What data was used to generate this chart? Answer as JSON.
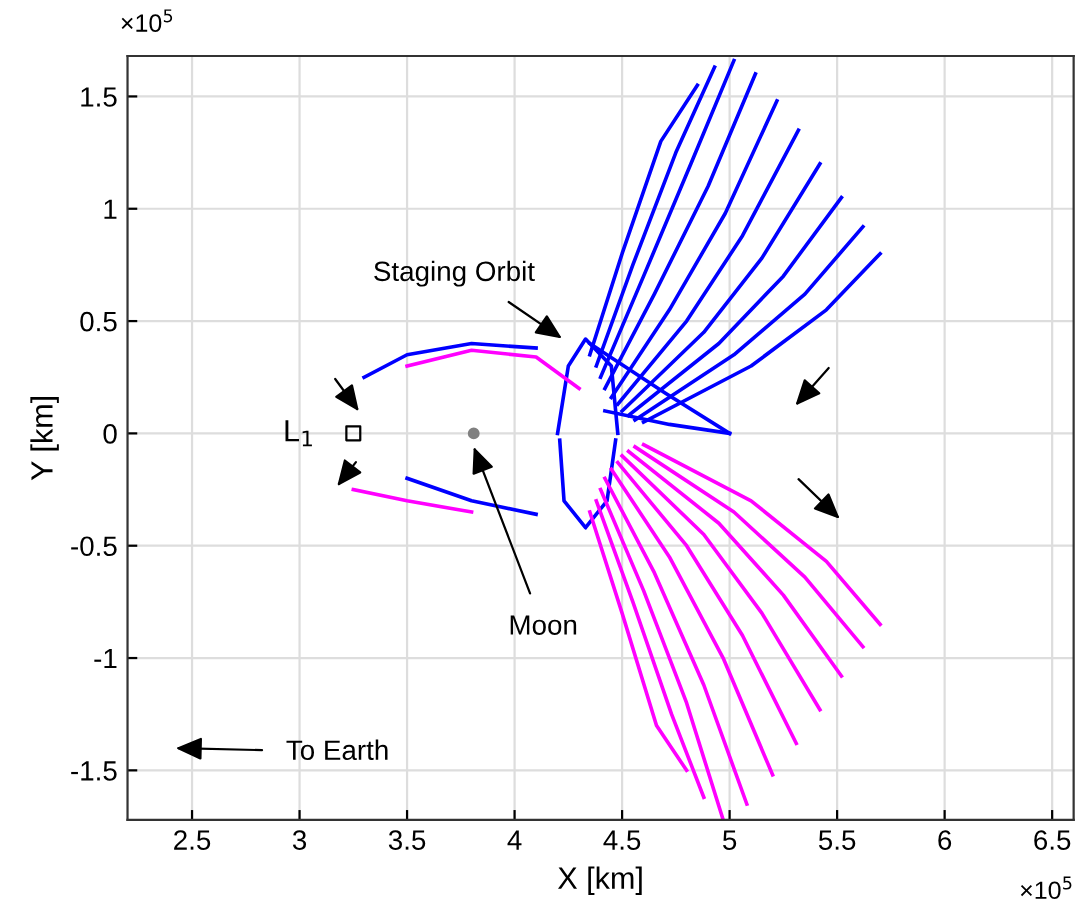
{
  "chart_data": {
    "type": "line",
    "xlabel": "X [km]",
    "ylabel": "Y [km]",
    "xlim": [
      2.2,
      6.6
    ],
    "ylim": [
      -1.72,
      1.68
    ],
    "xticks": [
      2.5,
      3,
      3.5,
      4,
      4.5,
      5,
      5.5,
      6,
      6.5
    ],
    "yticks": [
      -1.5,
      -1,
      -0.5,
      0,
      0.5,
      1,
      1.5
    ],
    "grid": true,
    "marker": "none",
    "line_style": "solid",
    "annotations": [
      "Staging Orbit",
      {
        "text": "Moon",
        "x": 3.81,
        "y": -0.06
      },
      {
        "text": "L$_{1}$",
        "x": 3.2,
        "y": 0
      },
      "To Earth",
      "×10$^{5}$",
      "×10$^{5}$"
    ],
    "series": [
      {
        "color": "#0000ff",
        "x": [
          4.35,
          4.5,
          4.68,
          4.85
        ],
        "values": [
          0.35,
          0.8,
          1.3,
          1.55
        ]
      },
      {
        "color": "#0000ff",
        "x": [
          4.38,
          4.55,
          4.75,
          4.93
        ],
        "values": [
          0.3,
          0.75,
          1.25,
          1.63
        ]
      },
      {
        "color": "#0000ff",
        "x": [
          4.4,
          4.6,
          4.82,
          5.02
        ],
        "values": [
          0.25,
          0.7,
          1.2,
          1.66
        ]
      },
      {
        "color": "#0000ff",
        "x": [
          4.42,
          4.65,
          4.9,
          5.12
        ],
        "values": [
          0.2,
          0.62,
          1.1,
          1.6
        ]
      },
      {
        "color": "#0000ff",
        "x": [
          4.45,
          4.72,
          4.98,
          5.22
        ],
        "values": [
          0.16,
          0.55,
          0.98,
          1.48
        ]
      },
      {
        "color": "#0000ff",
        "x": [
          4.48,
          4.8,
          5.06,
          5.32
        ],
        "values": [
          0.13,
          0.5,
          0.88,
          1.35
        ]
      },
      {
        "color": "#0000ff",
        "x": [
          4.5,
          4.88,
          5.15,
          5.42
        ],
        "values": [
          0.1,
          0.45,
          0.78,
          1.2
        ]
      },
      {
        "color": "#0000ff",
        "x": [
          4.53,
          4.95,
          5.25,
          5.52
        ],
        "values": [
          0.08,
          0.4,
          0.7,
          1.05
        ]
      },
      {
        "color": "#0000ff",
        "x": [
          4.56,
          5.02,
          5.35,
          5.62
        ],
        "values": [
          0.06,
          0.35,
          0.62,
          0.92
        ]
      },
      {
        "color": "#0000ff",
        "x": [
          4.6,
          5.1,
          5.45,
          5.7
        ],
        "values": [
          0.05,
          0.3,
          0.55,
          0.8
        ]
      },
      {
        "color": "#0000ff",
        "x": [
          4.35,
          4.7,
          5.0
        ],
        "values": [
          0.4,
          0.18,
          0
        ]
      },
      {
        "color": "#0000ff",
        "x": [
          4.42,
          4.72,
          5.0
        ],
        "values": [
          0.1,
          0.04,
          0
        ]
      },
      {
        "color": "#0000ff",
        "x": [
          4.2,
          4.25,
          4.33,
          4.45,
          4.48
        ],
        "values": [
          0,
          0.3,
          0.42,
          0.3,
          0
        ]
      },
      {
        "color": "#0000ff",
        "x": [
          4.21,
          4.23,
          4.33,
          4.43,
          4.47
        ],
        "values": [
          -0.03,
          -0.3,
          -0.42,
          -0.3,
          -0.03
        ]
      },
      {
        "color": "#0000ff",
        "x": [
          3.3,
          3.5,
          3.8,
          4.1
        ],
        "values": [
          0.25,
          0.35,
          0.4,
          0.38
        ]
      },
      {
        "color": "#0000ff",
        "x": [
          3.5,
          3.8,
          4.1
        ],
        "values": [
          -0.2,
          -0.3,
          -0.36
        ]
      },
      {
        "color": "#ff00ff",
        "x": [
          3.5,
          3.8,
          4.1,
          4.3
        ],
        "values": [
          0.3,
          0.37,
          0.34,
          0.2
        ]
      },
      {
        "color": "#ff00ff",
        "x": [
          3.25,
          3.5,
          3.8
        ],
        "values": [
          -0.25,
          -0.3,
          -0.35
        ]
      },
      {
        "color": "#ff00ff",
        "x": [
          4.35,
          4.5,
          4.66,
          4.8
        ],
        "values": [
          -0.35,
          -0.8,
          -1.3,
          -1.5
        ]
      },
      {
        "color": "#ff00ff",
        "x": [
          4.38,
          4.55,
          4.73,
          4.88
        ],
        "values": [
          -0.3,
          -0.75,
          -1.25,
          -1.62
        ]
      },
      {
        "color": "#ff00ff",
        "x": [
          4.4,
          4.6,
          4.8,
          4.97
        ],
        "values": [
          -0.25,
          -0.7,
          -1.2,
          -1.72
        ]
      },
      {
        "color": "#ff00ff",
        "x": [
          4.42,
          4.65,
          4.88,
          5.08
        ],
        "values": [
          -0.2,
          -0.62,
          -1.12,
          -1.65
        ]
      },
      {
        "color": "#ff00ff",
        "x": [
          4.45,
          4.72,
          4.97,
          5.2
        ],
        "values": [
          -0.16,
          -0.55,
          -1.0,
          -1.52
        ]
      },
      {
        "color": "#ff00ff",
        "x": [
          4.48,
          4.8,
          5.06,
          5.31
        ],
        "values": [
          -0.13,
          -0.5,
          -0.9,
          -1.38
        ]
      },
      {
        "color": "#ff00ff",
        "x": [
          4.5,
          4.88,
          5.15,
          5.42
        ],
        "values": [
          -0.1,
          -0.45,
          -0.8,
          -1.23
        ]
      },
      {
        "color": "#ff00ff",
        "x": [
          4.53,
          4.95,
          5.25,
          5.52
        ],
        "values": [
          -0.08,
          -0.4,
          -0.72,
          -1.08
        ]
      },
      {
        "color": "#ff00ff",
        "x": [
          4.56,
          5.02,
          5.35,
          5.62
        ],
        "values": [
          -0.06,
          -0.35,
          -0.64,
          -0.95
        ]
      },
      {
        "color": "#ff00ff",
        "x": [
          4.6,
          5.1,
          5.45,
          5.7
        ],
        "values": [
          -0.05,
          -0.3,
          -0.57,
          -0.85
        ]
      },
      {
        "type": "scatter",
        "marker": "square",
        "color": "#000000",
        "x": [
          3.25
        ],
        "values": [
          0
        ]
      },
      {
        "type": "scatter",
        "marker": "circle",
        "color": "#808080",
        "x": [
          3.81
        ],
        "values": [
          0
        ]
      }
    ]
  }
}
